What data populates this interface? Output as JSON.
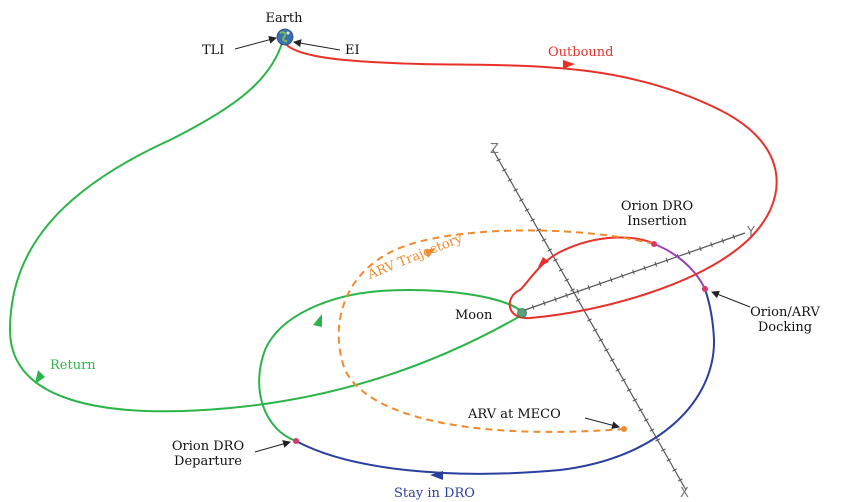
{
  "diagram": {
    "labels": {
      "earth": "Earth",
      "tli": "TLI",
      "ei": "EI",
      "outbound": "Outbound",
      "orion_dro_insertion_line1": "Orion DRO",
      "orion_dro_insertion_line2": "Insertion",
      "arv_trajectory": "ARV Trajectory",
      "moon": "Moon",
      "orion_arv_docking_line1": "Orion/ARV",
      "orion_arv_docking_line2": "Docking",
      "return": "Return",
      "arv_at_meco": "ARV at MECO",
      "orion_dro_departure_line1": "Orion DRO",
      "orion_dro_departure_line2": "Departure",
      "stay_in_dro": "Stay in DRO"
    },
    "axes": {
      "z": "Z",
      "y": "Y",
      "x": "X"
    },
    "colors": {
      "outbound": "#e8312a",
      "return": "#2ab44a",
      "stay_in_dro": "#2b3f9e",
      "arv_trajectory": "#f08a2c",
      "docking_segment": "#9b3fb5",
      "axes": "#555555",
      "text": "#111111"
    }
  }
}
